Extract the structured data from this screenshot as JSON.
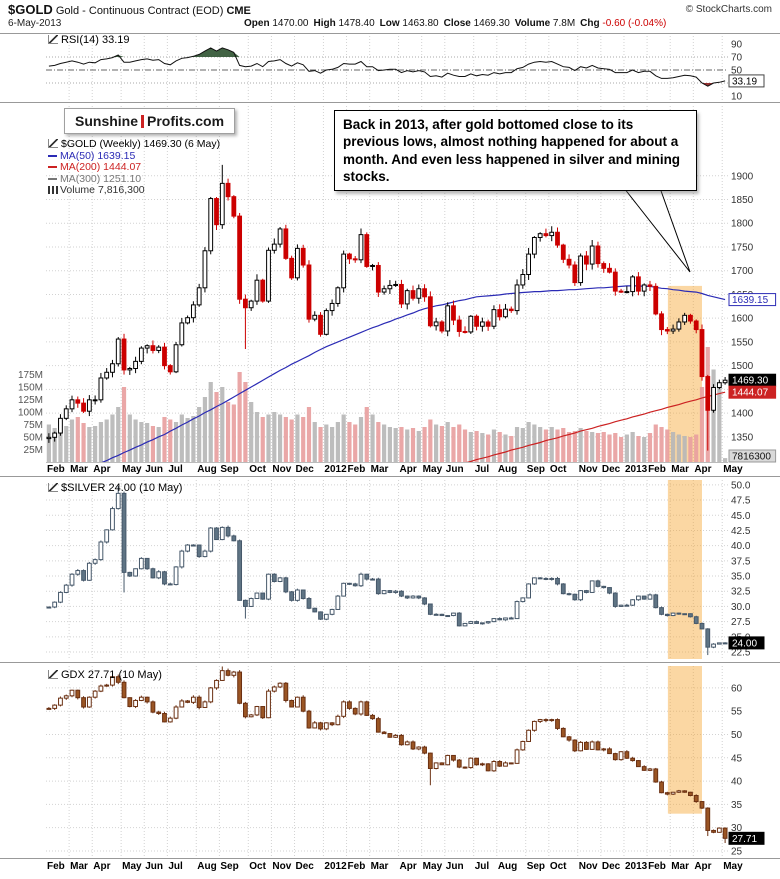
{
  "header": {
    "symbol": "$GOLD",
    "name": "Gold - Continuous Contract (EOD)",
    "exchange": "CME",
    "credit": "© StockCharts.com",
    "date": "6-May-2013",
    "quote": [
      {
        "label": "Open",
        "value": "1470.00"
      },
      {
        "label": "High",
        "value": "1478.40"
      },
      {
        "label": "Low",
        "value": "1463.80"
      },
      {
        "label": "Close",
        "value": "1469.30"
      },
      {
        "label": "Volume",
        "value": "7.8M"
      },
      {
        "label": "Chg",
        "value": "-0.60 (-0.04%)",
        "color": "#cc0000"
      }
    ]
  },
  "logo": {
    "part1": "Sunshine",
    "part2": "Profits.com"
  },
  "annotation": {
    "text": "Back in 2013, after gold bottomed close to its previous lows, almost nothing happened for about a month. And even less happened in silver and mining stocks."
  },
  "axis": {
    "months": [
      {
        "label": "Feb",
        "i": 0
      },
      {
        "label": "Mar",
        "i": 4
      },
      {
        "label": "Apr",
        "i": 8
      },
      {
        "label": "May",
        "i": 13
      },
      {
        "label": "Jun",
        "i": 17
      },
      {
        "label": "Jul",
        "i": 21
      },
      {
        "label": "Aug",
        "i": 26
      },
      {
        "label": "Sep",
        "i": 30
      },
      {
        "label": "Oct",
        "i": 35
      },
      {
        "label": "Nov",
        "i": 39
      },
      {
        "label": "Dec",
        "i": 43
      },
      {
        "label": "2012",
        "i": 48,
        "bold": true
      },
      {
        "label": "Feb",
        "i": 52
      },
      {
        "label": "Mar",
        "i": 56
      },
      {
        "label": "Apr",
        "i": 61
      },
      {
        "label": "May",
        "i": 65
      },
      {
        "label": "Jun",
        "i": 69
      },
      {
        "label": "Jul",
        "i": 74
      },
      {
        "label": "Aug",
        "i": 78
      },
      {
        "label": "Sep",
        "i": 83
      },
      {
        "label": "Oct",
        "i": 87
      },
      {
        "label": "Nov",
        "i": 92
      },
      {
        "label": "Dec",
        "i": 96
      },
      {
        "label": "2013",
        "i": 100,
        "bold": true
      },
      {
        "label": "Feb",
        "i": 104
      },
      {
        "label": "Mar",
        "i": 108
      },
      {
        "label": "Apr",
        "i": 112
      },
      {
        "label": "May",
        "i": 117
      }
    ]
  },
  "chart_data": [
    {
      "id": "rsi",
      "type": "line",
      "label": "RSI(14) 33.19",
      "line_color": "#111111",
      "overbought": 70,
      "oversold": 30,
      "over_fill": "#2e5230",
      "under_fill": "#8b1c1c",
      "yticks": [
        90,
        70,
        50,
        30,
        10
      ],
      "tick_decimals": 0,
      "values": [
        56,
        57,
        60,
        62,
        64,
        62,
        59,
        62,
        61,
        66,
        67,
        69,
        73,
        62,
        62,
        64,
        66,
        67,
        65,
        66,
        60,
        58,
        64,
        68,
        69,
        71,
        74,
        79,
        84,
        79,
        84,
        81,
        77,
        57,
        55,
        56,
        60,
        55,
        63,
        64,
        66,
        60,
        56,
        61,
        58,
        48,
        49,
        45,
        50,
        51,
        54,
        60,
        59,
        59,
        63,
        55,
        55,
        49,
        50,
        51,
        51,
        46,
        49,
        47,
        49,
        47,
        40,
        41,
        39,
        45,
        42,
        40,
        40,
        44,
        41,
        43,
        42,
        46,
        44,
        46,
        46,
        52,
        54,
        59,
        62,
        63,
        62,
        63,
        59,
        55,
        54,
        49,
        55,
        53,
        57,
        53,
        52,
        51,
        46,
        46,
        46,
        50,
        46,
        48,
        48,
        41,
        37,
        37,
        38,
        40,
        42,
        41,
        39,
        30,
        25,
        30,
        31,
        33.19
      ],
      "boxes": [
        {
          "v": 33.19,
          "t": "33.19",
          "style": "rsi"
        }
      ]
    },
    {
      "id": "gold",
      "type": "candlestick",
      "label": "$GOLD (Weekly) 1469.30 (6 May)",
      "legend": [
        {
          "name": "ma50",
          "label": "MA(50) 1639.15",
          "color": "#2b2bb5"
        },
        {
          "name": "ma200",
          "label": "MA(200) 1444.07",
          "color": "#cc2222"
        },
        {
          "name": "ma300",
          "label": "MA(300) 1251.10",
          "color": "#777777"
        },
        {
          "name": "volume",
          "label": "Volume 7,816,300",
          "color": "#333333"
        }
      ],
      "up_color": "#000000",
      "down_color": "#cc0000",
      "up_fill": "#ffffff",
      "down_fill": "#cc0000",
      "yticks": [
        1900,
        1850,
        1800,
        1750,
        1700,
        1650,
        1600,
        1550,
        1500,
        1450,
        1400,
        1350
      ],
      "tick_decimals": 0,
      "close": [
        1349,
        1358,
        1389,
        1409,
        1428,
        1421,
        1404,
        1428,
        1428,
        1474,
        1486,
        1504,
        1556,
        1491,
        1494,
        1509,
        1537,
        1542,
        1532,
        1539,
        1500,
        1487,
        1544,
        1590,
        1601,
        1628,
        1664,
        1742,
        1852,
        1797,
        1884,
        1856,
        1815,
        1640,
        1622,
        1636,
        1680,
        1636,
        1743,
        1756,
        1788,
        1726,
        1685,
        1747,
        1712,
        1598,
        1606,
        1566,
        1616,
        1631,
        1664,
        1735,
        1725,
        1723,
        1776,
        1709,
        1711,
        1655,
        1662,
        1669,
        1671,
        1630,
        1658,
        1642,
        1662,
        1645,
        1584,
        1592,
        1573,
        1626,
        1596,
        1572,
        1571,
        1604,
        1583,
        1592,
        1583,
        1618,
        1603,
        1619,
        1616,
        1670,
        1692,
        1735,
        1770,
        1778,
        1774,
        1781,
        1754,
        1724,
        1712,
        1675,
        1731,
        1714,
        1752,
        1715,
        1705,
        1697,
        1657,
        1656,
        1656,
        1687,
        1657,
        1670,
        1667,
        1609,
        1576,
        1573,
        1577,
        1592,
        1606,
        1594,
        1576,
        1477,
        1406,
        1454,
        1464,
        1469.3
      ],
      "extremes": {
        "30": {
          "high": 1923
        },
        "34": {
          "low": 1535
        },
        "114": {
          "low": 1321
        }
      },
      "ma50": [
        1248,
        1253,
        1258,
        1264,
        1269,
        1274,
        1279,
        1285,
        1290,
        1295,
        1300,
        1306,
        1311,
        1317,
        1322,
        1328,
        1333,
        1339,
        1344,
        1350,
        1355,
        1362,
        1368,
        1375,
        1381,
        1388,
        1394,
        1401,
        1407,
        1414,
        1420,
        1427,
        1434,
        1441,
        1448,
        1455,
        1462,
        1469,
        1476,
        1483,
        1490,
        1496,
        1503,
        1509,
        1515,
        1521,
        1528,
        1534,
        1540,
        1545,
        1550,
        1555,
        1560,
        1565,
        1570,
        1575,
        1580,
        1584,
        1589,
        1593,
        1598,
        1602,
        1607,
        1611,
        1616,
        1620,
        1623,
        1626,
        1628,
        1631,
        1634,
        1637,
        1639,
        1642,
        1645,
        1646,
        1647,
        1648,
        1649,
        1651,
        1652,
        1653,
        1654,
        1655,
        1656,
        1656,
        1657,
        1658,
        1658,
        1659,
        1660,
        1660,
        1661,
        1662,
        1663,
        1664,
        1664,
        1665,
        1666,
        1667,
        1668,
        1668,
        1668,
        1667,
        1667,
        1665,
        1663,
        1662,
        1660,
        1659,
        1657,
        1656,
        1655,
        1652,
        1648,
        1645,
        1642,
        1639.15
      ],
      "ma200_start": 60,
      "ma200": [
        1255,
        1258,
        1262,
        1265,
        1268,
        1272,
        1275,
        1278,
        1282,
        1285,
        1288,
        1292,
        1295,
        1298,
        1302,
        1305,
        1308,
        1312,
        1315,
        1318,
        1322,
        1325,
        1328,
        1332,
        1335,
        1338,
        1342,
        1345,
        1348,
        1352,
        1355,
        1358,
        1362,
        1365,
        1368,
        1372,
        1375,
        1378,
        1382,
        1385,
        1388,
        1392,
        1395,
        1398,
        1402,
        1405,
        1408,
        1412,
        1415,
        1418,
        1422,
        1425,
        1428,
        1432,
        1435,
        1438,
        1441,
        1444.07
      ],
      "volume": [
        75,
        68,
        80,
        72,
        85,
        90,
        78,
        70,
        72,
        80,
        85,
        95,
        110,
        150,
        95,
        85,
        80,
        78,
        72,
        70,
        90,
        85,
        80,
        95,
        88,
        92,
        110,
        130,
        160,
        140,
        150,
        120,
        115,
        180,
        160,
        120,
        100,
        90,
        95,
        100,
        95,
        90,
        85,
        95,
        90,
        110,
        80,
        70,
        75,
        70,
        80,
        95,
        80,
        75,
        90,
        110,
        95,
        80,
        75,
        70,
        68,
        70,
        65,
        68,
        62,
        70,
        85,
        75,
        72,
        80,
        70,
        75,
        65,
        60,
        62,
        58,
        55,
        65,
        60,
        55,
        52,
        70,
        68,
        80,
        75,
        70,
        65,
        70,
        65,
        68,
        60,
        62,
        68,
        62,
        60,
        58,
        60,
        55,
        58,
        50,
        55,
        60,
        52,
        50,
        58,
        75,
        70,
        65,
        60,
        55,
        52,
        50,
        55,
        150,
        230,
        185,
        150,
        7.8
      ],
      "vol_ticks": [
        {
          "label": "175M",
          "value": 175
        },
        {
          "label": "150M",
          "value": 150
        },
        {
          "label": "125M",
          "value": 125
        },
        {
          "label": "100M",
          "value": 100
        },
        {
          "label": "75M",
          "value": 75
        },
        {
          "label": "50M",
          "value": 50
        },
        {
          "label": "25M",
          "value": 25
        }
      ],
      "boxes": [
        {
          "v": 1639.15,
          "t": "1639.15",
          "style": "ma50"
        },
        {
          "v": 1469.3,
          "t": "1469.30",
          "style": "close"
        },
        {
          "v": 1444.07,
          "t": "1444.07",
          "style": "ma200"
        }
      ],
      "vol_box": {
        "t": "7816300",
        "style": "vol"
      },
      "highlight": {
        "start": 107.6,
        "end": 113.5,
        "top_value": 1668,
        "bottom_value": null
      }
    },
    {
      "id": "silver",
      "type": "candlestick",
      "label": "$SILVER 24.00 (10 May)",
      "up_color": "#46586a",
      "down_color": "#46586a",
      "up_fill": "#ffffff",
      "down_fill": "#5f7484",
      "yticks": [
        50,
        47.5,
        45,
        42.5,
        40,
        37.5,
        35,
        32.5,
        30,
        27.5,
        25,
        22.5
      ],
      "tick_decimals": 1,
      "close": [
        29.9,
        30.7,
        32.3,
        33.5,
        35.3,
        35.9,
        34.3,
        37.1,
        37.7,
        40.6,
        42.6,
        46.1,
        48.6,
        35.6,
        35.0,
        36.2,
        37.9,
        36.2,
        34.7,
        35.7,
        33.7,
        33.6,
        36.5,
        39.1,
        40.1,
        40.1,
        38.2,
        39.1,
        42.9,
        41.0,
        43.0,
        41.6,
        40.8,
        31.0,
        30.0,
        31.3,
        32.2,
        31.2,
        35.3,
        34.1,
        34.7,
        32.4,
        31.0,
        32.7,
        31.3,
        29.7,
        29.1,
        27.9,
        28.7,
        29.5,
        31.7,
        33.8,
        33.7,
        33.4,
        35.3,
        34.5,
        34.5,
        32.1,
        32.6,
        32.3,
        32.5,
        31.7,
        31.4,
        31.7,
        31.4,
        30.4,
        28.7,
        28.7,
        28.5,
        28.5,
        28.9,
        26.8,
        27.2,
        27.5,
        27.2,
        27.3,
        27.5,
        28.0,
        27.8,
        28.1,
        28.0,
        30.8,
        31.4,
        33.7,
        34.7,
        34.6,
        34.5,
        34.6,
        33.7,
        32.1,
        32.0,
        31.1,
        32.6,
        32.3,
        34.2,
        33.3,
        33.1,
        32.2,
        30.0,
        30.2,
        30.2,
        31.1,
        31.7,
        31.2,
        31.9,
        29.8,
        28.7,
        28.5,
        28.9,
        28.8,
        28.8,
        28.3,
        27.2,
        26.3,
        23.3,
        23.8,
        24.0,
        24.0
      ],
      "extremes": {
        "12": {
          "high": 49.8
        },
        "13": {
          "low": 32.3
        },
        "34": {
          "low": 28.0
        },
        "114": {
          "low": 22.0
        }
      },
      "boxes": [
        {
          "v": 24.0,
          "t": "24.00",
          "style": "close"
        }
      ],
      "highlight": {
        "start": 107.6,
        "end": 113.5,
        "top_value": null,
        "bottom_value": null
      }
    },
    {
      "id": "gdx",
      "type": "candlestick",
      "label": "GDX 27.71 (10 May)",
      "up_color": "#6b3012",
      "down_color": "#6b3012",
      "up_fill": "#ffffff",
      "down_fill": "#9a5524",
      "yticks": [
        60,
        55,
        50,
        45,
        40,
        35,
        30,
        25
      ],
      "tick_decimals": 0,
      "close": [
        55.6,
        56.3,
        57.8,
        58.3,
        59.5,
        57.9,
        55.9,
        58.0,
        59.3,
        60.4,
        60.6,
        62.4,
        61.2,
        57.9,
        56.0,
        57.3,
        58.0,
        57.0,
        54.8,
        54.5,
        52.7,
        53.5,
        55.9,
        57.2,
        56.9,
        58.0,
        55.8,
        57.0,
        60.0,
        61.6,
        63.7,
        62.7,
        63.4,
        56.7,
        53.8,
        54.2,
        56.0,
        53.6,
        59.3,
        60.2,
        61.0,
        57.3,
        55.9,
        58.0,
        55.0,
        51.4,
        52.5,
        51.2,
        52.5,
        52.1,
        53.9,
        57.0,
        55.6,
        54.4,
        57.0,
        54.1,
        53.4,
        50.5,
        50.2,
        49.4,
        49.8,
        47.8,
        48.4,
        46.9,
        47.3,
        46.0,
        42.7,
        43.9,
        43.5,
        45.5,
        44.5,
        43.0,
        42.9,
        44.9,
        43.5,
        43.7,
        42.2,
        44.2,
        43.2,
        43.9,
        43.8,
        46.7,
        48.5,
        50.9,
        52.8,
        53.2,
        53.0,
        53.2,
        51.3,
        49.5,
        48.8,
        46.5,
        48.3,
        46.8,
        48.4,
        46.7,
        46.9,
        45.9,
        44.6,
        46.3,
        44.9,
        44.4,
        43.1,
        42.3,
        42.6,
        39.8,
        37.5,
        37.2,
        37.6,
        37.9,
        37.6,
        36.9,
        35.6,
        34.2,
        29.4,
        29.0,
        29.9,
        27.71
      ],
      "extremes": {
        "30": {
          "high": 64.6
        },
        "66": {
          "low": 39.1
        },
        "114": {
          "low": 28.2
        },
        "117": {
          "low": 26.7
        }
      },
      "boxes": [
        {
          "v": 27.71,
          "t": "27.71",
          "style": "close"
        }
      ],
      "highlight": {
        "start": 107.6,
        "end": 113.5,
        "top_value": null,
        "bottom_value": 33
      }
    }
  ]
}
